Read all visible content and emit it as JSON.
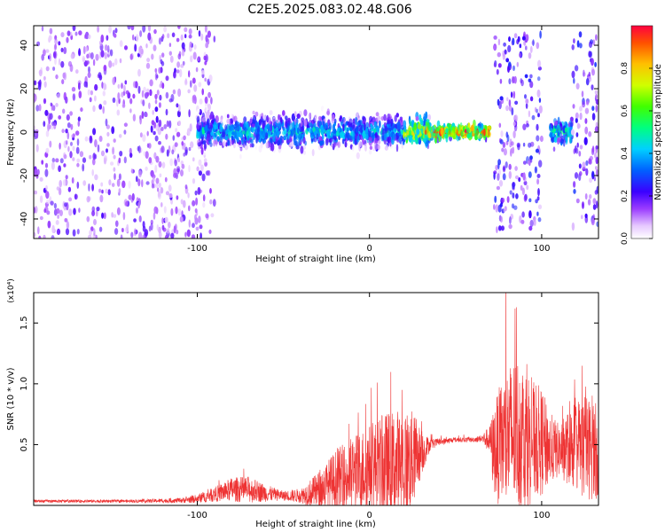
{
  "figure_title": "C2E5.2025.083.02.48.G06",
  "chart_data": [
    {
      "type": "heatmap",
      "title": "C2E5.2025.083.02.48.G06",
      "xlabel": "Height of straight line (km)",
      "ylabel": "Frequency (Hz)",
      "xlim": [
        -195,
        133
      ],
      "ylim": [
        -49,
        49
      ],
      "x_ticks": [
        -100,
        0,
        100
      ],
      "x_tick_labels": [
        "-100",
        "0",
        "100"
      ],
      "y_ticks": [
        -40,
        -20,
        0,
        20,
        40
      ],
      "y_tick_labels": [
        "-40",
        "-20",
        "0",
        "20",
        "40"
      ],
      "colorbar": {
        "label": "Normalized spectral amplitude",
        "range": [
          0,
          1
        ],
        "ticks": [
          0.0,
          0.2,
          0.4,
          0.6,
          0.8
        ],
        "tick_labels": [
          "0.0",
          "0.2",
          "0.4",
          "0.6",
          "0.8"
        ],
        "colormap": "rainbow"
      },
      "regions": [
        {
          "x_start": -195,
          "x_end": -90,
          "level": 0.15,
          "spread": 49,
          "kind": "noise"
        },
        {
          "x_start": -100,
          "x_end": 20,
          "level": 0.45,
          "spread": 4,
          "kind": "signal"
        },
        {
          "x_start": 20,
          "x_end": 35,
          "level": 0.7,
          "spread": 3,
          "kind": "signal"
        },
        {
          "x_start": 32,
          "x_end": 70,
          "level": 0.9,
          "spread": 1.5,
          "kind": "signal"
        },
        {
          "x_start": 72,
          "x_end": 100,
          "level": 0.2,
          "spread": 45,
          "kind": "noise"
        },
        {
          "x_start": 105,
          "x_end": 118,
          "level": 0.55,
          "spread": 3,
          "kind": "signal"
        },
        {
          "x_start": 118,
          "x_end": 133,
          "level": 0.2,
          "spread": 45,
          "kind": "noise"
        }
      ],
      "grid": false,
      "legend": "none"
    },
    {
      "type": "line",
      "xlabel": "Height of straight line (km)",
      "ylabel": "SNR (10 * v/v)",
      "y_multiplier": "(x10⁴)",
      "xlim": [
        -195,
        133
      ],
      "ylim": [
        0,
        17500
      ],
      "x_ticks": [
        -100,
        0,
        100
      ],
      "x_tick_labels": [
        "-100",
        "0",
        "100"
      ],
      "y_ticks": [
        5000,
        10000,
        15000
      ],
      "y_tick_labels": [
        "0.5",
        "1.0",
        "1.5"
      ],
      "color": "#ee3333",
      "series": [
        {
          "x": [
            -195,
            -140,
            -110,
            -100,
            -90,
            -80,
            -70,
            -60,
            -50,
            -40,
            -30,
            -20,
            -10,
            0,
            10,
            20,
            25,
            30,
            35,
            40,
            50,
            60,
            65,
            70,
            72,
            75,
            80,
            85,
            90,
            95,
            100,
            105,
            110,
            115,
            120,
            125,
            130,
            133
          ],
          "mid": [
            350,
            350,
            400,
            550,
            900,
            1300,
            1300,
            1000,
            800,
            800,
            1200,
            2000,
            2500,
            3200,
            3200,
            3300,
            3800,
            4300,
            5000,
            5200,
            5400,
            5400,
            5500,
            5400,
            4500,
            4800,
            5500,
            6000,
            5700,
            5300,
            5200,
            4700,
            4500,
            4700,
            5000,
            4800,
            4500,
            4500
          ],
          "amp": [
            120,
            120,
            200,
            350,
            600,
            1000,
            1100,
            700,
            400,
            600,
            1500,
            2500,
            3200,
            3500,
            4500,
            4800,
            4000,
            2000,
            500,
            300,
            200,
            200,
            300,
            1200,
            3500,
            4800,
            6000,
            6500,
            6200,
            5000,
            4500,
            3000,
            2200,
            3000,
            3800,
            4500,
            4000,
            4000
          ],
          "peak": [
            100,
            100,
            150,
            250,
            400,
            700,
            800,
            500,
            300,
            400,
            1000,
            1800,
            2800,
            5500,
            4000,
            3600,
            4800,
            3000,
            800,
            600,
            400,
            400,
            600,
            1600,
            2500,
            3500,
            10000,
            6000,
            5500,
            4000,
            3500,
            2500,
            2000,
            2500,
            3000,
            5000,
            4000,
            4000
          ]
        }
      ],
      "grid": false,
      "legend": "none"
    }
  ]
}
